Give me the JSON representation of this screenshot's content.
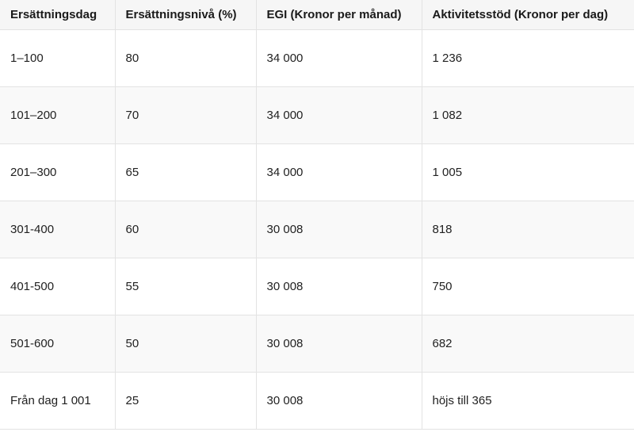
{
  "table": {
    "headers": [
      "Ersättningsdag",
      "Ersättningsnivå (%)",
      "EGI (Kronor per månad)",
      "Aktivitetsstöd (Kronor per dag)"
    ],
    "rows": [
      [
        "1–100",
        "80",
        "34 000",
        "1 236"
      ],
      [
        "101–200",
        "70",
        "34 000",
        "1 082"
      ],
      [
        "201–300",
        "65",
        "34 000",
        "1 005"
      ],
      [
        "301-400",
        "60",
        "30 008",
        "818"
      ],
      [
        "401-500",
        "55",
        "30 008",
        "750"
      ],
      [
        "501-600",
        "50",
        "30 008",
        "682"
      ],
      [
        "Från dag 1 001",
        "25",
        "30 008",
        "höjs till 365"
      ]
    ]
  }
}
